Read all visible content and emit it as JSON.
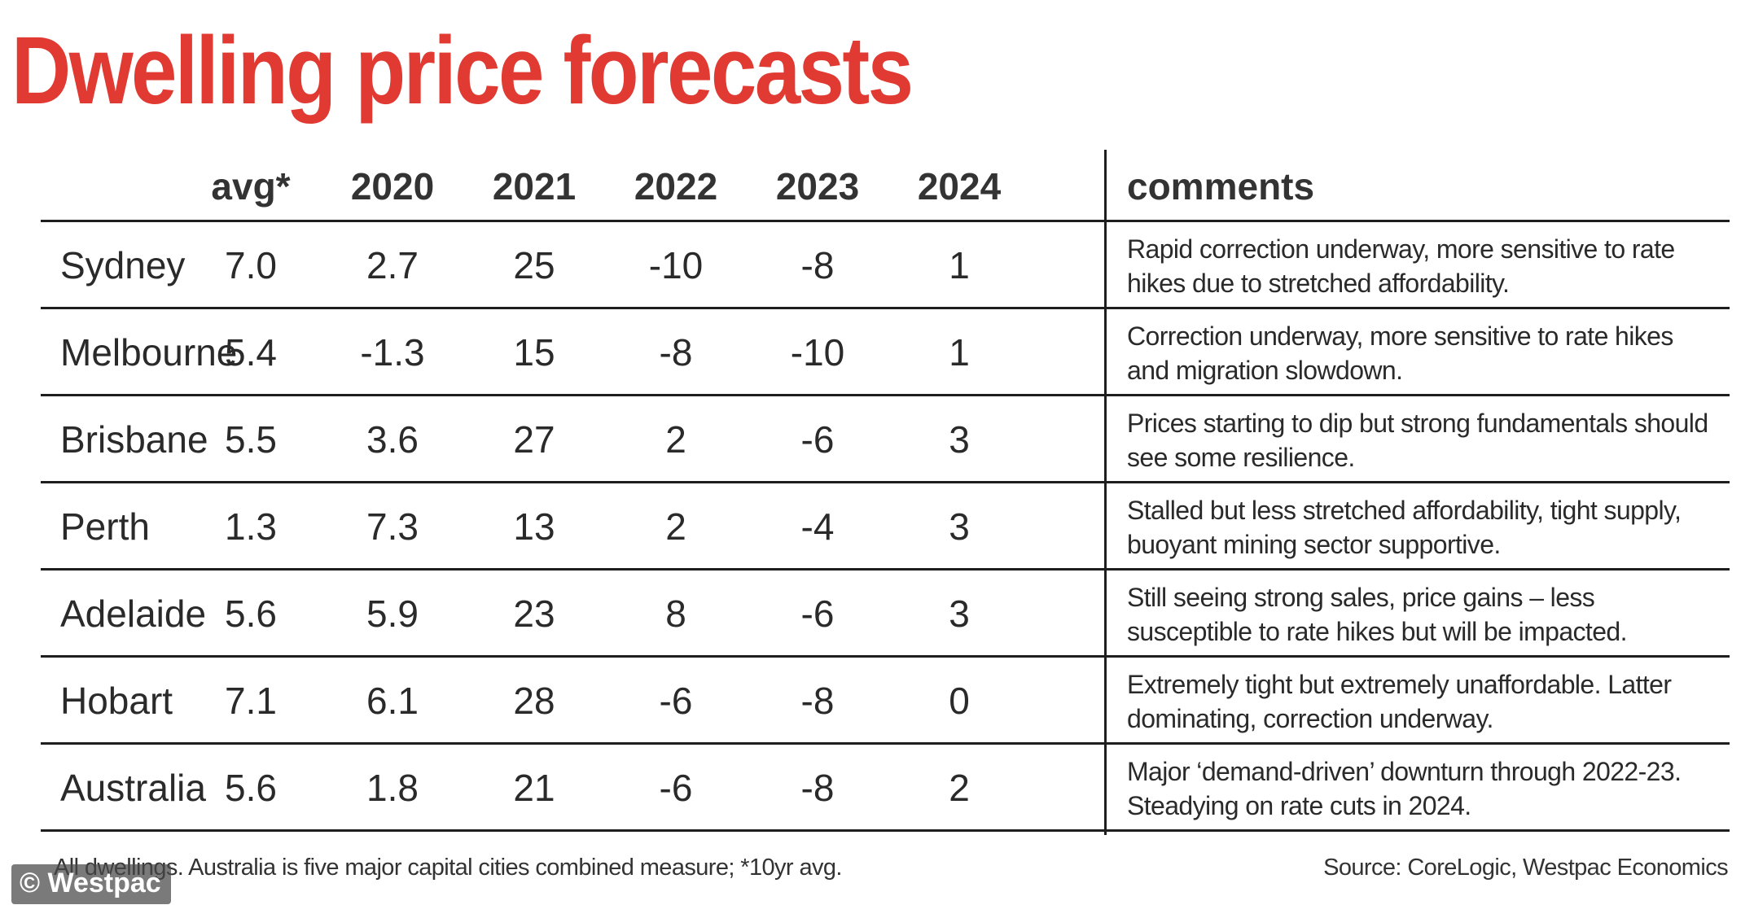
{
  "title": "Dwelling price forecasts",
  "columns": [
    "",
    "avg*",
    "2020",
    "2021",
    "2022",
    "2023",
    "2024",
    "comments"
  ],
  "rows": [
    {
      "city": "Sydney",
      "values": [
        "7.0",
        "2.7",
        "25",
        "-10",
        "-8",
        "1"
      ],
      "comment": "Rapid correction underway, more sensitive to rate hikes due to stretched affordability."
    },
    {
      "city": "Melbourne",
      "values": [
        "5.4",
        "-1.3",
        "15",
        "-8",
        "-10",
        "1"
      ],
      "comment": "Correction underway, more sensitive to rate hikes and migration slowdown."
    },
    {
      "city": "Brisbane",
      "values": [
        "5.5",
        "3.6",
        "27",
        "2",
        "-6",
        "3"
      ],
      "comment": "Prices starting to dip but strong fundamentals should see some resilience."
    },
    {
      "city": "Perth",
      "values": [
        "1.3",
        "7.3",
        "13",
        "2",
        "-4",
        "3"
      ],
      "comment": "Stalled but less stretched affordability, tight supply, buoyant mining sector supportive."
    },
    {
      "city": "Adelaide",
      "values": [
        "5.6",
        "5.9",
        "23",
        "8",
        "-6",
        "3"
      ],
      "comment": "Still seeing strong sales, price gains – less susceptible to rate hikes but will be impacted."
    },
    {
      "city": "Hobart",
      "values": [
        "7.1",
        "6.1",
        "28",
        "-6",
        "-8",
        "0"
      ],
      "comment": "Extremely tight but extremely unaffordable. Latter dominating, correction underway."
    },
    {
      "city": "Australia",
      "values": [
        "5.6",
        "1.8",
        "21",
        "-6",
        "-8",
        "2"
      ],
      "comment": "Major ‘demand-driven’ downturn through 2022-23. Steadying on rate cuts in 2024."
    }
  ],
  "footnote": "All dwellings. Australia is five major capital cities combined measure; *10yr avg.",
  "source": "Source: CoreLogic, Westpac Economics",
  "watermark": "© Westpac",
  "colors": {
    "title": "#e03a32",
    "rule": "#1e1e1e",
    "text": "#2a2a2a"
  },
  "chart_data": {
    "type": "table",
    "title": "Dwelling price forecasts",
    "columns": [
      "avg*",
      "2020",
      "2021",
      "2022",
      "2023",
      "2024",
      "comments"
    ],
    "rows": [
      [
        "Sydney",
        7.0,
        2.7,
        25,
        -10,
        -8,
        1,
        "Rapid correction underway, more sensitive to rate hikes due to stretched affordability."
      ],
      [
        "Melbourne",
        5.4,
        -1.3,
        15,
        -8,
        -10,
        1,
        "Correction underway, more sensitive to rate hikes and migration slowdown."
      ],
      [
        "Brisbane",
        5.5,
        3.6,
        27,
        2,
        -6,
        3,
        "Prices starting to dip but strong fundamentals should see some resilience."
      ],
      [
        "Perth",
        1.3,
        7.3,
        13,
        2,
        -4,
        3,
        "Stalled but less stretched affordability, tight supply, buoyant mining sector supportive."
      ],
      [
        "Adelaide",
        5.6,
        5.9,
        23,
        8,
        -6,
        3,
        "Still seeing strong sales, price gains – less susceptible to rate hikes but will be impacted."
      ],
      [
        "Hobart",
        7.1,
        6.1,
        28,
        -6,
        -8,
        0,
        "Extremely tight but extremely unaffordable. Latter dominating, correction underway."
      ],
      [
        "Australia",
        5.6,
        1.8,
        21,
        -6,
        -8,
        2,
        "Major ‘demand-driven’ downturn through 2022-23. Steadying on rate cuts in 2024."
      ]
    ],
    "footnote": "All dwellings. Australia is five major capital cities combined measure; *10yr avg.",
    "source": "Source: CoreLogic, Westpac Economics"
  }
}
